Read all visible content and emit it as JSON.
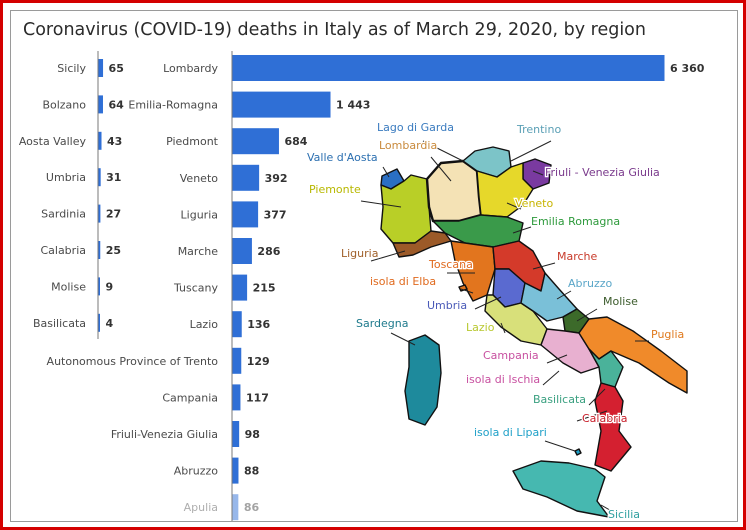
{
  "title": "Coronavirus (COVID-19) deaths in Italy as of March 29, 2020, by region",
  "colors": {
    "bar": "#2f6fd6",
    "frame": "#d40000",
    "axis": "#7a7a7a"
  },
  "chart_data": [
    {
      "type": "bar",
      "orientation": "horizontal",
      "categories": [
        "Sicily",
        "Bolzano",
        "Aosta Valley",
        "Umbria",
        "Sardinia",
        "Calabria",
        "Molise",
        "Basilicata"
      ],
      "values": [
        65,
        64,
        43,
        31,
        27,
        25,
        9,
        4
      ],
      "value_labels": [
        "65",
        "64",
        "43",
        "31",
        "27",
        "25",
        "9",
        "4"
      ]
    },
    {
      "type": "bar",
      "orientation": "horizontal",
      "categories": [
        "Lombardy",
        "Emilia-Romagna",
        "Piedmont",
        "Veneto",
        "Liguria",
        "Marche",
        "Tuscany",
        "Lazio",
        "Autonomous Province of Trento",
        "Campania",
        "Friuli-Venezia Giulia",
        "Abruzzo",
        "Apulia"
      ],
      "values": [
        6360,
        1443,
        684,
        392,
        377,
        286,
        215,
        136,
        129,
        117,
        98,
        88,
        86
      ],
      "value_labels": [
        "6 360",
        "1 443",
        "684",
        "392",
        "377",
        "286",
        "215",
        "136",
        "129",
        "117",
        "98",
        "88",
        "86"
      ]
    }
  ],
  "map": {
    "region_labels": [
      {
        "text": "Lago di Garda",
        "color": "#3a7bbf"
      },
      {
        "text": "Trentino",
        "color": "#5a9fb5"
      },
      {
        "text": "Lombardia",
        "color": "#c98a3c"
      },
      {
        "text": "Valle d'Aosta",
        "color": "#2b6fb0"
      },
      {
        "text": "Friuli - Venezia Giulia",
        "color": "#7a3a8c"
      },
      {
        "text": "Piemonte",
        "color": "#b8b800"
      },
      {
        "text": "Veneto",
        "color": "#c7b400"
      },
      {
        "text": "Emilia Romagna",
        "color": "#2e9a3c"
      },
      {
        "text": "Liguria",
        "color": "#a0602a"
      },
      {
        "text": "Marche",
        "color": "#c83a2a"
      },
      {
        "text": "Toscana",
        "color": "#e06a1e"
      },
      {
        "text": "isola di Elba",
        "color": "#e06a1e"
      },
      {
        "text": "Abruzzo",
        "color": "#5aa6c8"
      },
      {
        "text": "Molise",
        "color": "#3a5a2a"
      },
      {
        "text": "Umbria",
        "color": "#4a5ab8"
      },
      {
        "text": "Lazio",
        "color": "#b8c830"
      },
      {
        "text": "Puglia",
        "color": "#e07a1e"
      },
      {
        "text": "Sardegna",
        "color": "#1e7a8c"
      },
      {
        "text": "Campania",
        "color": "#c850a0"
      },
      {
        "text": "isola di Ischia",
        "color": "#c850a0"
      },
      {
        "text": "Basilicata",
        "color": "#3aa080"
      },
      {
        "text": "Calabria",
        "color": "#c81e2a"
      },
      {
        "text": "isola di Lipari",
        "color": "#1ea0c8"
      },
      {
        "text": "Sicilia",
        "color": "#30a0a0"
      }
    ]
  }
}
